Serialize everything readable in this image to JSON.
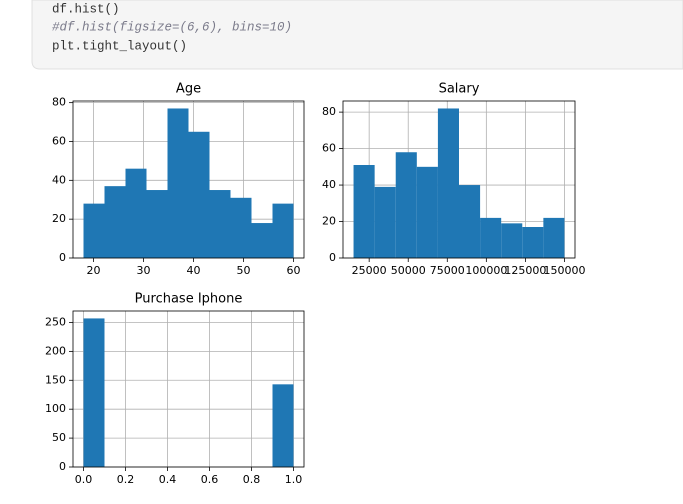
{
  "code": {
    "lines": [
      "df.hist()",
      "#df.hist(figsize=(6,6), bins=10)",
      "plt.tight_layout()"
    ]
  },
  "chart_data": [
    {
      "type": "histogram",
      "title": "Age",
      "color": "#1f77b4",
      "grid": true,
      "bins": [
        18,
        22.2,
        26.4,
        30.6,
        34.8,
        39,
        43.2,
        47.4,
        51.6,
        55.8,
        60
      ],
      "values": [
        28,
        37,
        46,
        35,
        77,
        65,
        35,
        31,
        18,
        28
      ],
      "xlim": [
        15.9,
        62.1
      ],
      "ylim": [
        0,
        80.85
      ],
      "xticks": [
        20,
        30,
        40,
        50,
        60
      ],
      "yticks": [
        0,
        20,
        40,
        60,
        80
      ]
    },
    {
      "type": "histogram",
      "title": "Salary",
      "color": "#1f77b4",
      "grid": true,
      "bins": [
        15000,
        28500,
        42000,
        55500,
        69000,
        82500,
        96000,
        109500,
        123000,
        136500,
        150000
      ],
      "values": [
        51,
        39,
        58,
        50,
        82,
        40,
        22,
        19,
        17,
        22
      ],
      "xlim": [
        8250,
        156750
      ],
      "ylim": [
        0,
        86.1
      ],
      "xticks": [
        25000,
        50000,
        75000,
        100000,
        125000,
        150000
      ],
      "yticks": [
        0,
        20,
        40,
        60,
        80
      ]
    },
    {
      "type": "histogram",
      "title": "Purchase Iphone",
      "color": "#1f77b4",
      "grid": true,
      "bins": [
        0,
        0.1,
        0.2,
        0.3,
        0.4,
        0.5,
        0.6,
        0.7,
        0.8,
        0.9,
        1
      ],
      "values": [
        257,
        0,
        0,
        0,
        0,
        0,
        0,
        0,
        0,
        143
      ],
      "xlim": [
        -0.05,
        1.05
      ],
      "ylim": [
        0,
        269.85
      ],
      "xticks": [
        {
          "value": 0,
          "label": "0.0"
        },
        {
          "value": 0.2,
          "label": "0.2"
        },
        {
          "value": 0.4,
          "label": "0.4"
        },
        {
          "value": 0.6,
          "label": "0.6"
        },
        {
          "value": 0.8,
          "label": "0.8"
        },
        {
          "value": 1,
          "label": "1.0"
        }
      ],
      "yticks": [
        0,
        50,
        100,
        150,
        200,
        250
      ]
    }
  ]
}
